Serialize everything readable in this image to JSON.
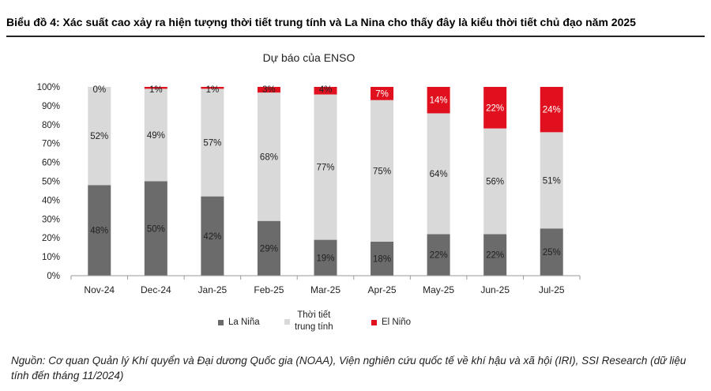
{
  "figure_title": "Biểu đồ 4: Xác suất cao xảy ra hiện tượng thời tiết trung tính và La Nina cho thấy đây là kiểu thời tiết chủ đạo năm 2025",
  "source_note": "Nguồn: Cơ quan Quản lý Khí quyển và Đại dương Quốc gia (NOAA), Viện nghiên cứu quốc tế về khí hậu và xã hội (IRI), SSI Research (dữ liệu tính đến tháng 11/2024)",
  "legend": [
    {
      "label_lines": [
        "La Niña"
      ],
      "color": "#6b6b6b"
    },
    {
      "label_lines": [
        "Thời tiết",
        "trung tính"
      ],
      "color": "#d9d9d9"
    },
    {
      "label_lines": [
        "El Niño"
      ],
      "color": "#e0101f"
    }
  ],
  "chart_data": {
    "type": "bar",
    "stacked": true,
    "title": "Dự báo của ENSO",
    "categories": [
      "Nov-24",
      "Dec-24",
      "Jan-25",
      "Feb-25",
      "Mar-25",
      "Apr-25",
      "May-25",
      "Jun-25",
      "Jul-25"
    ],
    "series": [
      {
        "name": "La Niña",
        "color": "#6b6b6b",
        "values": [
          48,
          50,
          42,
          29,
          19,
          18,
          22,
          22,
          25
        ]
      },
      {
        "name": "Thời tiết trung tính",
        "color": "#d9d9d9",
        "values": [
          52,
          49,
          57,
          68,
          77,
          75,
          64,
          56,
          51
        ]
      },
      {
        "name": "El Niño",
        "color": "#e0101f",
        "values": [
          0,
          1,
          1,
          3,
          4,
          7,
          14,
          22,
          24
        ]
      }
    ],
    "ylim": [
      0,
      100
    ],
    "yticks": [
      "0%",
      "10%",
      "20%",
      "30%",
      "40%",
      "50%",
      "60%",
      "70%",
      "80%",
      "90%",
      "100%"
    ],
    "value_suffix": "%",
    "grid": false,
    "legend_position": "bottom"
  }
}
